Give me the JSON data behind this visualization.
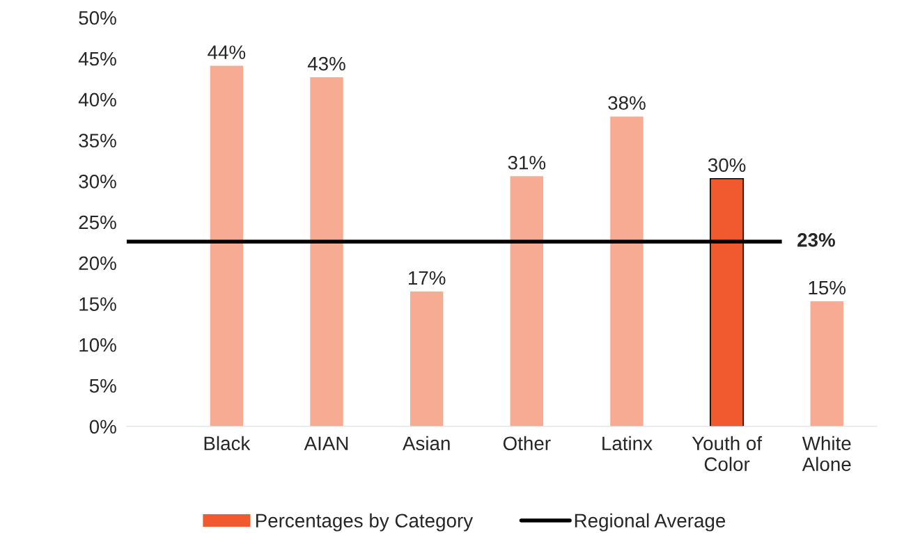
{
  "chart_data": {
    "type": "bar",
    "categories": [
      "Black",
      "AIAN",
      "Asian",
      "Other",
      "Latinx",
      "Youth of\nColor",
      "White\nAlone"
    ],
    "series": [
      {
        "name": "Percentages by Category",
        "color": "#f05a2e",
        "colors": [
          "#f7ab93",
          "#f7ab93",
          "#f7ab93",
          "#f7ab93",
          "#f7ab93",
          "#f05a2e",
          "#f7ab93"
        ],
        "values": [
          44.1,
          42.7,
          16.5,
          30.6,
          37.9,
          30.3,
          15.3
        ],
        "value_labels": [
          "44%",
          "43%",
          "17%",
          "31%",
          "38%",
          "30%",
          "15%"
        ]
      }
    ],
    "ylim": [
      0,
      50
    ],
    "yticks": [
      {
        "value": 0,
        "label": "0%"
      },
      {
        "value": 5,
        "label": "5%"
      },
      {
        "value": 10,
        "label": "10%"
      },
      {
        "value": 15,
        "label": "15%"
      },
      {
        "value": 20,
        "label": "20%"
      },
      {
        "value": 25,
        "label": "25%"
      },
      {
        "value": 30,
        "label": "30%"
      },
      {
        "value": 35,
        "label": "35%"
      },
      {
        "value": 40,
        "label": "40%"
      },
      {
        "value": 45,
        "label": "45%"
      },
      {
        "value": 50,
        "label": "50%"
      }
    ],
    "ref_lines": [
      {
        "axis": "y",
        "value": 22.6,
        "label": "Regional Average",
        "color": "#000000",
        "line_style": "solid"
      }
    ],
    "annotations": [
      "23%"
    ],
    "grid": false,
    "legend": "bottom"
  }
}
